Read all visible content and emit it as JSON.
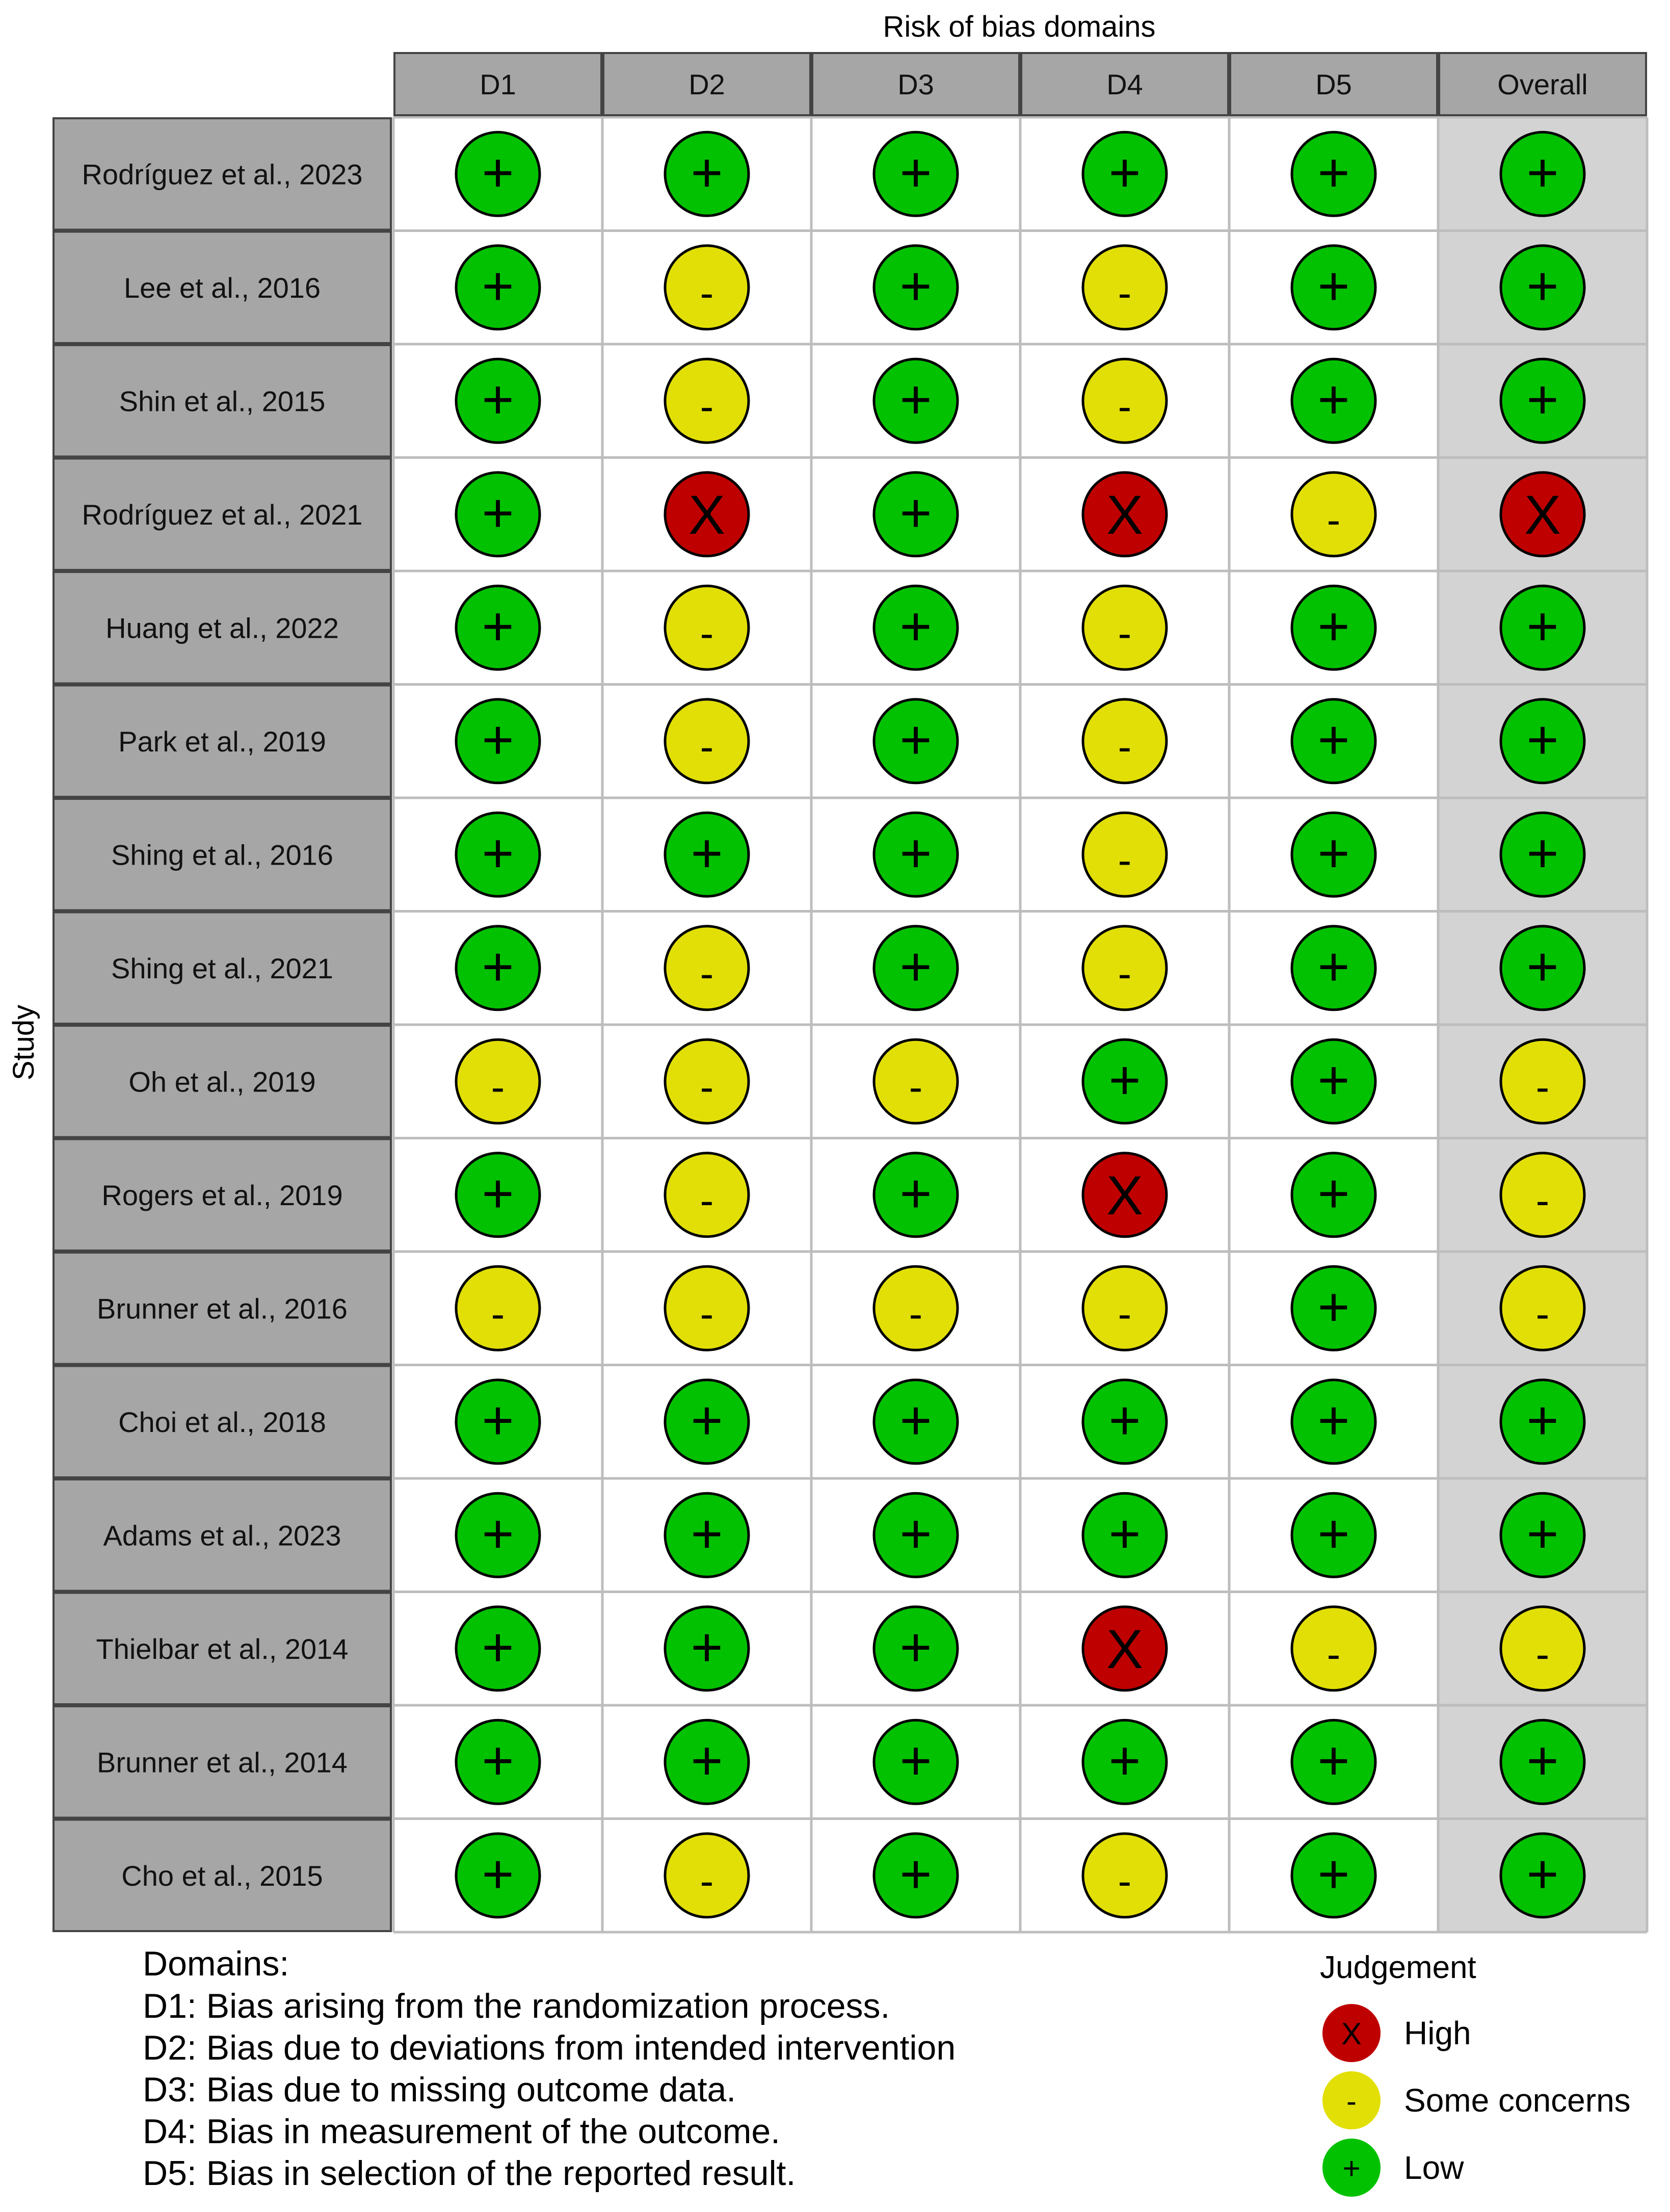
{
  "chart_data": {
    "type": "table",
    "title": "Risk of bias domains",
    "ylabel": "Study",
    "columns": [
      "D1",
      "D2",
      "D3",
      "D4",
      "D5",
      "Overall"
    ],
    "studies": [
      "Rodríguez et al., 2023",
      "Lee et al., 2016",
      "Shin et al., 2015",
      "Rodríguez et al., 2021",
      "Huang et al., 2022",
      "Park et al., 2019",
      "Shing et al., 2016",
      "Shing et al., 2021",
      "Oh et al., 2019",
      "Rogers et al., 2019",
      "Brunner et al., 2016",
      "Choi et al., 2018",
      "Adams et al., 2023",
      "Thielbar et al., 2014",
      "Brunner et al., 2014",
      "Cho et al., 2015"
    ],
    "judgements": [
      [
        "Low",
        "Low",
        "Low",
        "Low",
        "Low",
        "Low"
      ],
      [
        "Low",
        "Some concerns",
        "Low",
        "Some concerns",
        "Low",
        "Low"
      ],
      [
        "Low",
        "Some concerns",
        "Low",
        "Some concerns",
        "Low",
        "Low"
      ],
      [
        "Low",
        "High",
        "Low",
        "High",
        "Some concerns",
        "High"
      ],
      [
        "Low",
        "Some concerns",
        "Low",
        "Some concerns",
        "Low",
        "Low"
      ],
      [
        "Low",
        "Some concerns",
        "Low",
        "Some concerns",
        "Low",
        "Low"
      ],
      [
        "Low",
        "Low",
        "Low",
        "Some concerns",
        "Low",
        "Low"
      ],
      [
        "Low",
        "Some concerns",
        "Low",
        "Some concerns",
        "Low",
        "Low"
      ],
      [
        "Some concerns",
        "Some concerns",
        "Some concerns",
        "Low",
        "Low",
        "Some concerns"
      ],
      [
        "Low",
        "Some concerns",
        "Low",
        "High",
        "Low",
        "Some concerns"
      ],
      [
        "Some concerns",
        "Some concerns",
        "Some concerns",
        "Some concerns",
        "Low",
        "Some concerns"
      ],
      [
        "Low",
        "Low",
        "Low",
        "Low",
        "Low",
        "Low"
      ],
      [
        "Low",
        "Low",
        "Low",
        "Low",
        "Low",
        "Low"
      ],
      [
        "Low",
        "Low",
        "Low",
        "High",
        "Some concerns",
        "Some concerns"
      ],
      [
        "Low",
        "Low",
        "Low",
        "Low",
        "Low",
        "Low"
      ],
      [
        "Low",
        "Some concerns",
        "Low",
        "Some concerns",
        "Low",
        "Low"
      ]
    ],
    "legend": {
      "title": "Judgement",
      "placement": "bottom-right",
      "items": [
        {
          "name": "High",
          "symbol": "X",
          "color": "#bf0000"
        },
        {
          "name": "Some concerns",
          "symbol": "-",
          "color": "#e2df07"
        },
        {
          "name": "Low",
          "symbol": "+",
          "color": "#02c100"
        }
      ]
    },
    "domains_note": {
      "heading": "Domains:",
      "lines": [
        "D1: Bias arising from the randomization process.",
        "D2: Bias due to deviations from intended intervention",
        "D3: Bias due to missing outcome data.",
        "D4: Bias in measurement of the outcome.",
        "D5: Bias in selection of the reported result."
      ]
    },
    "colors": {
      "header_bg": "#a6a6a6",
      "study_bg": "#a6a6a6",
      "overall_bg": "#d3d3d3",
      "grid_line": "#bdbdbd"
    }
  }
}
